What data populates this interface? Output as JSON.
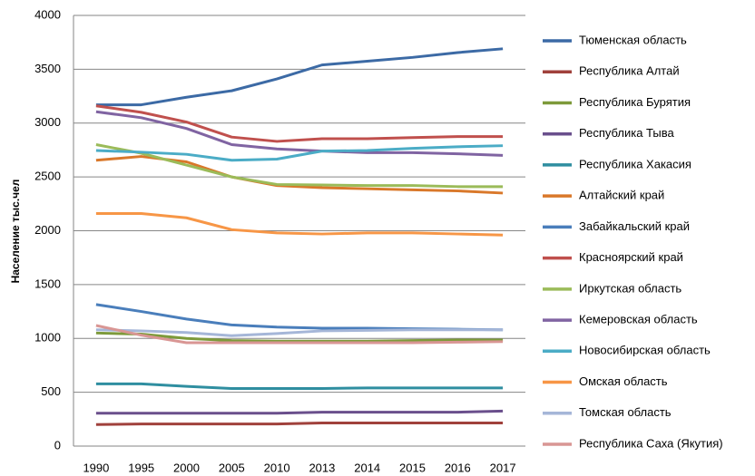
{
  "chart_data": {
    "type": "line",
    "y_label": "Население тыс.чел",
    "grid": true,
    "legend": "right",
    "categories": [
      "1990",
      "1995",
      "2000",
      "2005",
      "2010",
      "2013",
      "2014",
      "2015",
      "2016",
      "2017"
    ],
    "ylim": [
      0,
      4000
    ],
    "yticks": [
      0,
      500,
      1000,
      1500,
      2000,
      2500,
      3000,
      3500,
      4000
    ],
    "series": [
      {
        "name": "Тюменская область",
        "color": "#3c6aa5",
        "values": [
          3170,
          3170,
          3240,
          3300,
          3410,
          3540,
          3575,
          3610,
          3655,
          3690
        ]
      },
      {
        "name": "Республика Алтай",
        "color": "#a0413c",
        "values": [
          200,
          205,
          205,
          205,
          205,
          215,
          215,
          215,
          215,
          215
        ]
      },
      {
        "name": "Республика Бурятия",
        "color": "#7d9a3a",
        "values": [
          1050,
          1040,
          1000,
          980,
          975,
          975,
          975,
          980,
          985,
          985
        ]
      },
      {
        "name": "Республика Тыва",
        "color": "#6a4f8c",
        "values": [
          305,
          305,
          305,
          305,
          305,
          315,
          315,
          315,
          315,
          325
        ]
      },
      {
        "name": "Республика Хакасия",
        "color": "#2f8ea0",
        "values": [
          578,
          578,
          555,
          535,
          535,
          535,
          540,
          540,
          540,
          540
        ]
      },
      {
        "name": "Алтайский край",
        "color": "#d9782a",
        "values": [
          2655,
          2690,
          2640,
          2500,
          2420,
          2400,
          2390,
          2380,
          2370,
          2350
        ]
      },
      {
        "name": "Забайкальский край",
        "color": "#4a7ebb",
        "values": [
          1315,
          1250,
          1180,
          1125,
          1105,
          1095,
          1095,
          1090,
          1085,
          1080
        ]
      },
      {
        "name": "Красноярский край",
        "color": "#c0504d",
        "values": [
          3160,
          3100,
          3010,
          2870,
          2830,
          2855,
          2855,
          2865,
          2875,
          2875
        ]
      },
      {
        "name": "Иркутская область",
        "color": "#9bbb59",
        "values": [
          2800,
          2720,
          2610,
          2500,
          2430,
          2425,
          2420,
          2420,
          2410,
          2410
        ]
      },
      {
        "name": "Кемеровская область",
        "color": "#8064a2",
        "values": [
          3105,
          3050,
          2950,
          2800,
          2760,
          2740,
          2725,
          2725,
          2715,
          2700
        ]
      },
      {
        "name": "Новосибирская область",
        "color": "#4bacc6",
        "values": [
          2745,
          2730,
          2710,
          2655,
          2665,
          2740,
          2745,
          2765,
          2780,
          2790
        ]
      },
      {
        "name": "Омская область",
        "color": "#f79646",
        "values": [
          2160,
          2160,
          2120,
          2010,
          1980,
          1970,
          1980,
          1980,
          1970,
          1960
        ]
      },
      {
        "name": "Томская область",
        "color": "#a5b6d8",
        "values": [
          1080,
          1070,
          1055,
          1025,
          1045,
          1070,
          1075,
          1080,
          1080,
          1080
        ]
      },
      {
        "name": "Республика Саха (Якутия)",
        "color": "#d99694",
        "values": [
          1120,
          1030,
          960,
          960,
          960,
          960,
          960,
          960,
          965,
          970
        ]
      }
    ]
  }
}
